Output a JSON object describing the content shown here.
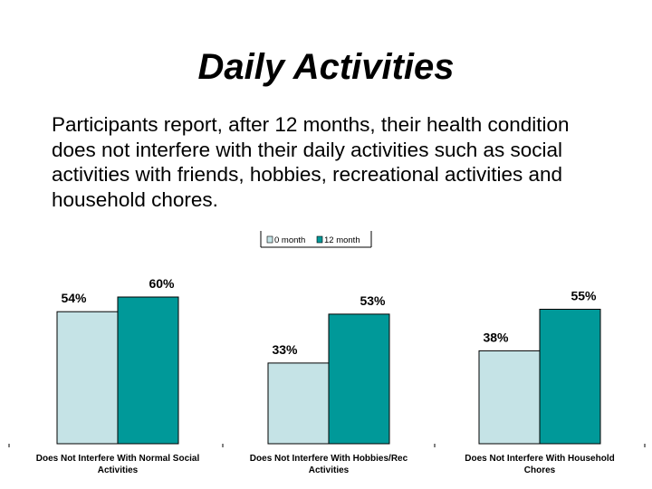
{
  "slide": {
    "title": "Daily Activities",
    "body": "Participants report, after 12 months, their health condition does not interfere with their daily activities such as social activities with friends, hobbies, recreational activities and household chores."
  },
  "colors": {
    "series_0_month": "#c5e3e6",
    "series_12_month": "#009999",
    "outline": "#000000"
  },
  "chart_data": {
    "type": "bar",
    "title": "",
    "xlabel": "",
    "ylabel": "",
    "ylim": [
      0,
      100
    ],
    "grid": false,
    "legend_position": "top",
    "value_format": "percent",
    "categories": [
      [
        "Does Not Interfere With Normal Social",
        "Activities"
      ],
      [
        "Does Not Interfere With Hobbies/Rec",
        "Activities"
      ],
      [
        "Does Not Interfere With Household",
        "Chores"
      ]
    ],
    "series": [
      {
        "name": "0 month",
        "values": [
          54,
          33,
          38
        ]
      },
      {
        "name": "12 month",
        "values": [
          60,
          53,
          55
        ]
      }
    ]
  }
}
